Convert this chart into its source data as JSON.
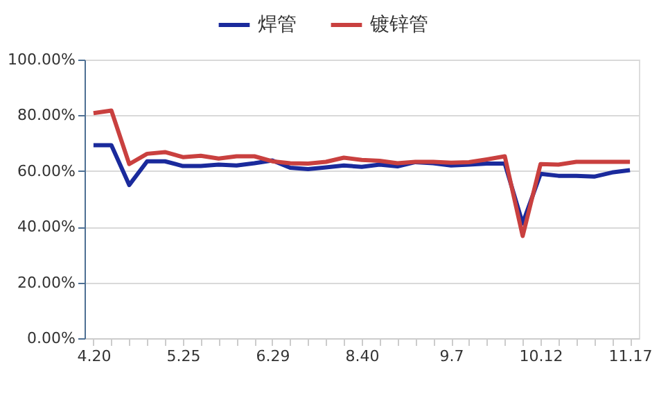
{
  "chart_data": {
    "type": "line",
    "categories": [
      "4.20",
      null,
      null,
      null,
      null,
      "5.25",
      null,
      null,
      null,
      null,
      "6.29",
      null,
      null,
      null,
      null,
      "8.40",
      null,
      null,
      null,
      null,
      "9.7",
      null,
      null,
      null,
      null,
      "10.12",
      null,
      null,
      null,
      null,
      "11.17"
    ],
    "series": [
      {
        "name": "焊管",
        "color": "#1a2a9c",
        "values": [
          69.3,
          69.3,
          55.0,
          63.5,
          63.5,
          61.8,
          61.8,
          62.3,
          62.0,
          62.8,
          63.8,
          61.2,
          60.7,
          61.3,
          62.0,
          61.5,
          62.3,
          61.7,
          63.2,
          62.8,
          62.0,
          62.3,
          62.7,
          62.7,
          41.2,
          59.0,
          58.3,
          58.3,
          58.0,
          59.5,
          60.3
        ]
      },
      {
        "name": "镀锌管",
        "color": "#c9403f",
        "values": [
          80.8,
          81.7,
          62.5,
          66.2,
          66.8,
          65.0,
          65.5,
          64.5,
          65.3,
          65.3,
          63.5,
          62.8,
          62.7,
          63.3,
          64.8,
          64.0,
          63.7,
          62.8,
          63.3,
          63.3,
          63.0,
          63.2,
          64.2,
          65.3,
          36.7,
          62.5,
          62.3,
          63.3,
          63.3,
          63.3,
          63.3
        ]
      }
    ],
    "ylim": [
      0,
      100
    ],
    "yticks": [
      {
        "value": 0,
        "label": "0.00%"
      },
      {
        "value": 20,
        "label": "20.00%"
      },
      {
        "value": 40,
        "label": "40.00%"
      },
      {
        "value": 60,
        "label": "60.00%"
      },
      {
        "value": 80,
        "label": "80.00%"
      },
      {
        "value": 100,
        "label": "100.00%"
      }
    ],
    "grid": "y",
    "legend": "top",
    "line_style": "solid",
    "marker": "none"
  }
}
